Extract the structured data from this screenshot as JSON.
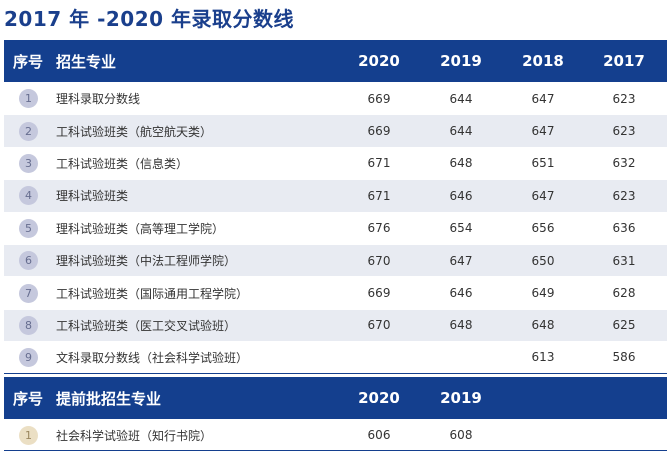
{
  "title": "2017 年 -2020 年录取分数线",
  "main_table": {
    "headers": [
      "序号",
      "招生专业",
      "2020",
      "2019",
      "2018",
      "2017"
    ],
    "rows": [
      {
        "idx": "1",
        "major": "理科录取分数线",
        "y2020": "669",
        "y2019": "644",
        "y2018": "647",
        "y2017": "623"
      },
      {
        "idx": "2",
        "major": "工科试验班类（航空航天类）",
        "y2020": "669",
        "y2019": "644",
        "y2018": "647",
        "y2017": "623"
      },
      {
        "idx": "3",
        "major": "工科试验班类（信息类）",
        "y2020": "671",
        "y2019": "648",
        "y2018": "651",
        "y2017": "632"
      },
      {
        "idx": "4",
        "major": "理科试验班类",
        "y2020": "671",
        "y2019": "646",
        "y2018": "647",
        "y2017": "623"
      },
      {
        "idx": "5",
        "major": "理科试验班类（高等理工学院）",
        "y2020": "676",
        "y2019": "654",
        "y2018": "656",
        "y2017": "636"
      },
      {
        "idx": "6",
        "major": "理科试验班类（中法工程师学院）",
        "y2020": "670",
        "y2019": "647",
        "y2018": "650",
        "y2017": "631"
      },
      {
        "idx": "7",
        "major": "工科试验班类（国际通用工程学院）",
        "y2020": "669",
        "y2019": "646",
        "y2018": "649",
        "y2017": "628"
      },
      {
        "idx": "8",
        "major": "工科试验班类（医工交叉试验班）",
        "y2020": "670",
        "y2019": "648",
        "y2018": "648",
        "y2017": "625"
      },
      {
        "idx": "9",
        "major": "文科录取分数线（社会科学试验班）",
        "y2020": "",
        "y2019": "",
        "y2018": "613",
        "y2017": "586"
      }
    ]
  },
  "early_table": {
    "headers": [
      "序号",
      "提前批招生专业",
      "2020",
      "2019"
    ],
    "rows": [
      {
        "idx": "1",
        "major": "社会科学试验班（知行书院）",
        "y2020": "606",
        "y2019": "608"
      }
    ]
  },
  "colors": {
    "header_bg": "#143f8e",
    "stripe": "#e8ebf2",
    "title": "#1a3f8c",
    "circle": "#c5c8dd",
    "circle_early": "#ebdfc4"
  }
}
